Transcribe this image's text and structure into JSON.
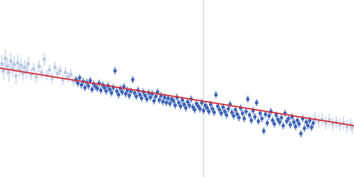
{
  "chart_data": {
    "type": "scatter",
    "xlim": [
      0,
      400
    ],
    "ylim": [
      0,
      200
    ],
    "xticks": [],
    "yticks": [],
    "tick_labels": false,
    "grid": false,
    "series": [
      {
        "type": "scatter",
        "color": "#b8c8e4",
        "marker": "circle",
        "x": [
          2,
          4,
          6,
          8,
          10,
          12,
          14,
          16,
          18,
          20,
          22,
          24,
          26,
          28,
          30,
          32,
          35,
          38,
          41,
          44,
          47,
          50,
          53,
          56,
          59,
          62,
          65,
          68,
          71,
          74,
          77,
          80,
          83
        ],
        "values": [
          128,
          120,
          134,
          125,
          118,
          131,
          122,
          127,
          114,
          129,
          121,
          126,
          117,
          124,
          119,
          128,
          116,
          122,
          113,
          125,
          118,
          133,
          115,
          121,
          112,
          124,
          117,
          120,
          110,
          118,
          113,
          116,
          108
        ],
        "error": [
          10,
          10,
          10,
          10,
          10,
          9,
          9,
          9,
          9,
          9,
          8,
          8,
          8,
          8,
          8,
          8,
          7,
          7,
          7,
          7,
          7,
          7,
          6,
          6,
          6,
          6,
          6,
          6,
          6,
          6,
          6,
          6,
          6
        ]
      },
      {
        "type": "scatter",
        "color": "#3a62b8",
        "marker": "circle",
        "x": [
          86,
          88,
          90,
          92,
          94,
          96,
          98,
          100,
          102,
          104,
          106,
          108,
          110,
          112,
          114,
          116,
          118,
          120,
          122,
          124,
          126,
          128,
          130,
          132,
          134,
          136,
          138,
          140,
          142,
          144,
          146,
          148,
          150,
          152,
          154,
          156,
          158,
          160,
          162,
          164,
          166,
          168,
          170,
          172,
          174,
          176,
          178,
          180,
          182,
          184,
          186,
          188,
          190,
          192,
          194,
          196,
          198,
          200,
          202,
          204,
          206,
          208,
          210,
          212,
          214,
          216,
          218,
          220,
          222,
          224,
          226,
          228,
          230,
          232,
          234,
          236,
          238,
          240,
          242,
          244,
          246,
          248,
          250,
          252,
          254,
          256,
          258,
          260,
          262,
          264,
          266,
          268,
          270,
          272,
          274,
          276,
          278,
          280,
          282,
          284,
          286,
          288,
          290,
          292,
          294,
          296,
          298,
          300,
          302,
          304,
          306,
          308,
          310,
          312,
          314,
          316,
          318,
          320,
          322,
          324,
          326,
          328,
          330,
          332,
          334,
          336,
          338,
          340,
          342,
          344,
          346,
          348,
          350,
          352,
          354
        ],
        "values": [
          110,
          106,
          112,
          104,
          108,
          101,
          107,
          103,
          109,
          99,
          105,
          102,
          100,
          106,
          98,
          104,
          101,
          97,
          103,
          99,
          95,
          101,
          120,
          97,
          93,
          100,
          96,
          102,
          94,
          98,
          92,
          97,
          110,
          95,
          91,
          98,
          93,
          89,
          96,
          92,
          88,
          95,
          90,
          94,
          86,
          91,
          96,
          87,
          92,
          85,
          90,
          84,
          89,
          83,
          88,
          86,
          81,
          90,
          84,
          80,
          87,
          82,
          78,
          85,
          81,
          88,
          79,
          76,
          83,
          80,
          77,
          84,
          75,
          81,
          78,
          74,
          82,
          77,
          73,
          93,
          80,
          76,
          72,
          79,
          74,
          70,
          77,
          82,
          73,
          69,
          76,
          71,
          67,
          78,
          72,
          66,
          74,
          88,
          70,
          64,
          75,
          68,
          84,
          63,
          72,
          66,
          52,
          71,
          61,
          69,
          74,
          64,
          60,
          70,
          65,
          62,
          67,
          58,
          72,
          63,
          66,
          59,
          68,
          62,
          57,
          64,
          60,
          49,
          66,
          55,
          62,
          58,
          64,
          56,
          61
        ],
        "error": [
          4,
          4,
          4,
          4,
          4,
          4,
          4,
          4,
          4,
          4,
          4,
          4,
          4,
          4,
          4,
          4,
          4,
          4,
          4,
          4,
          4,
          4,
          4,
          4,
          4,
          4,
          4,
          4,
          4,
          4,
          4,
          4,
          4,
          4,
          4,
          4,
          4,
          4,
          4,
          4,
          4,
          4,
          4,
          4,
          4,
          4,
          4,
          4,
          4,
          4,
          4,
          4,
          4,
          4,
          4,
          4,
          4,
          4,
          4,
          4,
          4,
          4,
          4,
          4,
          4,
          4,
          4,
          4,
          4,
          4,
          4,
          4,
          4,
          4,
          4,
          4,
          4,
          4,
          4,
          4,
          4,
          4,
          4,
          4,
          4,
          4,
          4,
          4,
          4,
          4,
          4,
          4,
          4,
          4,
          4,
          4,
          4,
          4,
          4,
          4,
          4,
          4,
          4,
          4,
          4,
          4,
          4,
          4,
          4,
          4,
          4,
          4,
          4,
          4,
          4,
          4,
          4,
          4,
          4,
          4,
          4,
          4,
          4,
          4,
          4,
          4,
          4,
          4,
          4,
          4,
          4,
          4,
          4,
          4,
          4
        ]
      },
      {
        "type": "scatter",
        "color": "#b8c8e4",
        "marker": "circle",
        "x": [
          356,
          360,
          364,
          368,
          372,
          376,
          380,
          384,
          388,
          392,
          396,
          398
        ],
        "values": [
          66,
          63,
          65,
          61,
          64,
          60,
          62,
          59,
          61,
          57,
          59,
          56
        ],
        "error": [
          7,
          7,
          7,
          7,
          7,
          7,
          7,
          7,
          7,
          7,
          7,
          7
        ]
      },
      {
        "type": "line",
        "color": "#d9303a",
        "line_style": "solid",
        "x": [
          0,
          400
        ],
        "values": [
          123,
          58
        ]
      },
      {
        "type": "line",
        "color": "#c8d0e0",
        "line_style": "solid",
        "x": [
          230,
          230
        ],
        "values": [
          0,
          200
        ]
      }
    ]
  }
}
